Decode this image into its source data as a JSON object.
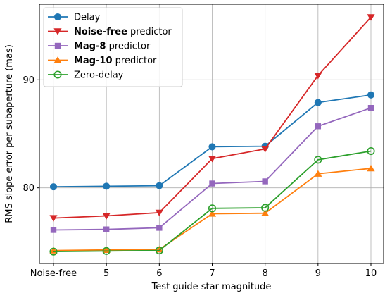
{
  "chart_data": {
    "type": "line",
    "categories": [
      "Noise-free",
      "5",
      "6",
      "7",
      "8",
      "9",
      "10"
    ],
    "xlabel": "Test guide star magnitude",
    "ylabel": "RMS slope error per subaperture (mas)",
    "yticks": [
      80,
      90
    ],
    "ylim": [
      73.0,
      97.0
    ],
    "grid": true,
    "legend_position": "top-left",
    "series": [
      {
        "name": "Delay",
        "bold": "",
        "rest": "Delay",
        "color": "#1f77b4",
        "marker": "circle",
        "values": [
          80.1,
          80.15,
          80.2,
          83.8,
          83.85,
          87.9,
          88.6
        ]
      },
      {
        "name": "Noise-free predictor",
        "bold": "Noise-free",
        "rest": " predictor",
        "color": "#d62728",
        "marker": "triangle-down",
        "values": [
          77.2,
          77.4,
          77.7,
          82.7,
          83.6,
          90.4,
          95.8
        ]
      },
      {
        "name": "Mag-8 predictor",
        "bold": "Mag-8",
        "rest": " predictor",
        "color": "#9467bd",
        "marker": "square",
        "values": [
          76.1,
          76.15,
          76.3,
          80.4,
          80.6,
          85.7,
          87.4
        ]
      },
      {
        "name": "Mag-10 predictor",
        "bold": "Mag-10",
        "rest": " predictor",
        "color": "#ff7f0e",
        "marker": "triangle-up",
        "values": [
          74.2,
          74.25,
          74.3,
          77.6,
          77.65,
          81.3,
          81.8
        ]
      },
      {
        "name": "Zero-delay",
        "bold": "",
        "rest": "Zero-delay",
        "color": "#2ca02c",
        "marker": "circle-open",
        "values": [
          74.1,
          74.15,
          74.2,
          78.1,
          78.15,
          82.6,
          83.4
        ]
      }
    ]
  }
}
